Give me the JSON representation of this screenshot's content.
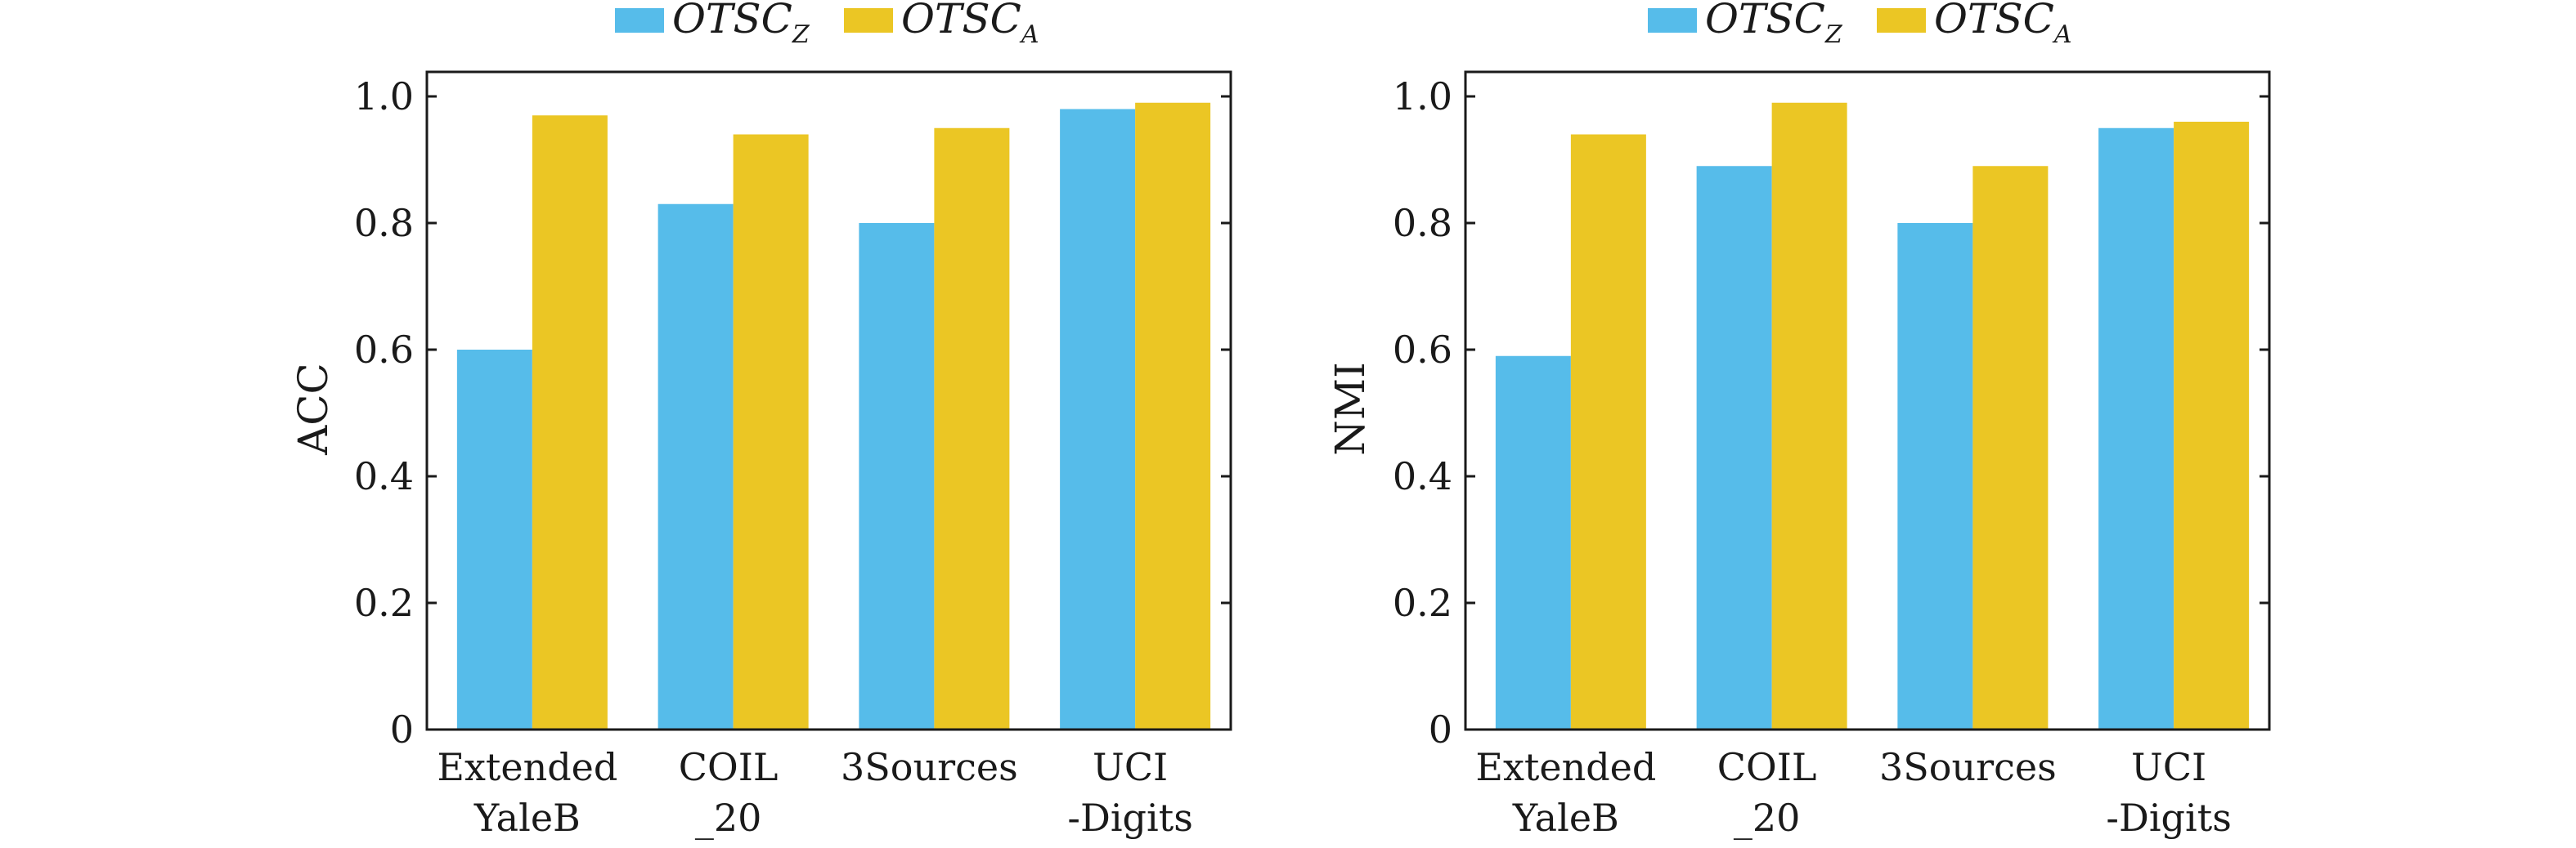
{
  "chart_data": [
    {
      "type": "bar",
      "title": "",
      "xlabel": "",
      "ylabel": "ACC",
      "ylim": [
        0,
        1.0
      ],
      "yticks": [
        "0",
        "0.2",
        "0.4",
        "0.6",
        "0.8",
        "1.0"
      ],
      "categories": [
        [
          "Extended",
          "YaleB"
        ],
        [
          "COIL",
          "_20"
        ],
        [
          "3Sources"
        ],
        [
          "UCI",
          "-Digits"
        ]
      ],
      "legend_position": "top",
      "grid": false,
      "series": [
        {
          "name_main": "OTSC",
          "name_sub": "Z",
          "color": "#56BCEA",
          "values": [
            0.6,
            0.83,
            0.8,
            0.98
          ]
        },
        {
          "name_main": "OTSC",
          "name_sub": "A",
          "color": "#EBC624",
          "values": [
            0.97,
            0.94,
            0.95,
            0.99
          ]
        }
      ]
    },
    {
      "type": "bar",
      "title": "",
      "xlabel": "",
      "ylabel": "NMI",
      "ylim": [
        0,
        1.0
      ],
      "yticks": [
        "0",
        "0.2",
        "0.4",
        "0.6",
        "0.8",
        "1.0"
      ],
      "categories": [
        [
          "Extended",
          "YaleB"
        ],
        [
          "COIL",
          "_20"
        ],
        [
          "3Sources"
        ],
        [
          "UCI",
          "-Digits"
        ]
      ],
      "legend_position": "top",
      "grid": false,
      "series": [
        {
          "name_main": "OTSC",
          "name_sub": "Z",
          "color": "#56BCEA",
          "values": [
            0.59,
            0.89,
            0.8,
            0.95
          ]
        },
        {
          "name_main": "OTSC",
          "name_sub": "A",
          "color": "#EBC624",
          "values": [
            0.94,
            0.99,
            0.89,
            0.96
          ]
        }
      ]
    }
  ]
}
